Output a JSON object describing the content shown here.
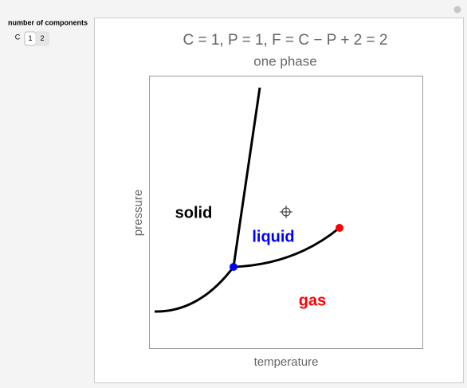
{
  "controls": {
    "heading": "number of components",
    "label": "C",
    "options": [
      "1",
      "2"
    ]
  },
  "plot": {
    "title": "C = 1, P = 1, F = C − P + 2 = 2",
    "subtitle": "one phase",
    "x_label": "temperature",
    "y_label": "pressure",
    "regions": [
      "solid",
      "liquid",
      "gas"
    ]
  }
}
